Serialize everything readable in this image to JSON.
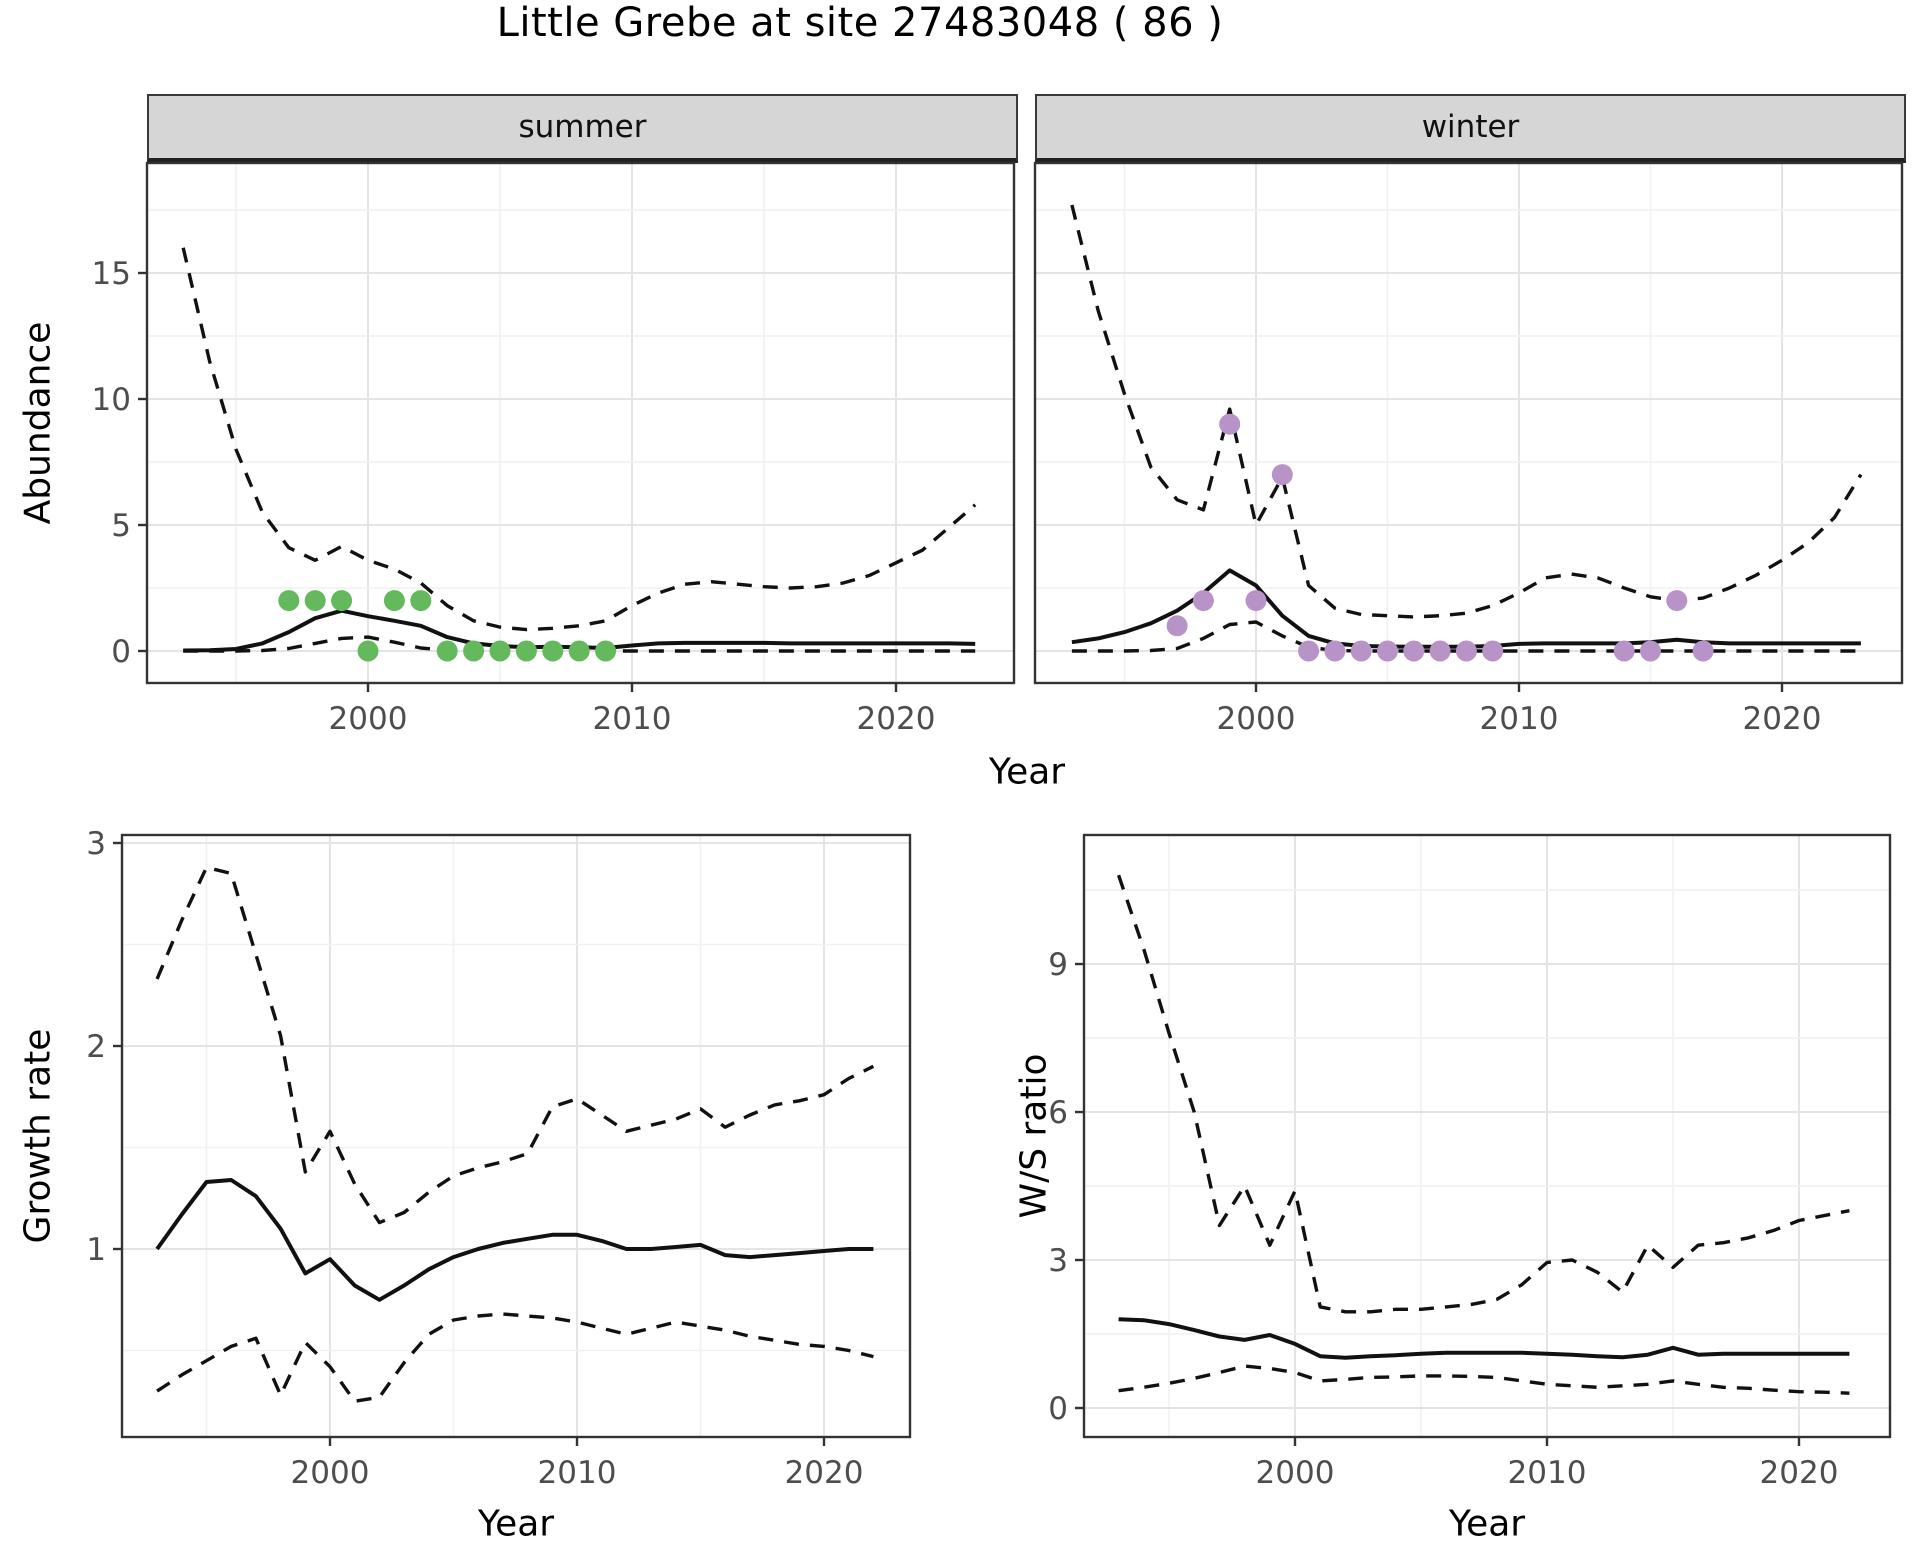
{
  "title": "Little Grebe at site 27483048 ( 86 )",
  "facets": [
    {
      "label": "summer"
    },
    {
      "label": "winter"
    }
  ],
  "axis_labels": {
    "abundance": "Abundance",
    "year": "Year",
    "growth_rate": "Growth rate",
    "ws_ratio": "W/S ratio"
  },
  "colors": {
    "line": "#111111",
    "summer_points": "#64b95c",
    "winter_points": "#b793c8",
    "strip_bg": "#d6d6d6",
    "panel_border": "#333333",
    "grid_major": "#e4e4e4",
    "grid_minor": "#f1f1f1",
    "axis_text": "#4d4d4d"
  },
  "chart_data": [
    {
      "type": "line",
      "facet": "summer",
      "xlabel": "Year",
      "ylabel": "Abundance",
      "xticks": [
        2000,
        2010,
        2020
      ],
      "yticks": [
        0,
        5,
        10,
        15
      ],
      "xlim": [
        1991.6,
        2024.6
      ],
      "ylim": [
        -1.3,
        19.4
      ],
      "grid": true,
      "x": [
        1993,
        1994,
        1995,
        1996,
        1997,
        1998,
        1999,
        2000,
        2001,
        2002,
        2003,
        2004,
        2005,
        2006,
        2007,
        2008,
        2009,
        2010,
        2011,
        2012,
        2013,
        2014,
        2015,
        2016,
        2017,
        2018,
        2019,
        2020,
        2021,
        2022,
        2023
      ],
      "series": [
        {
          "name": "upper_CI",
          "style": "dashed",
          "values": [
            16.0,
            11.5,
            8.0,
            5.5,
            4.1,
            3.6,
            4.15,
            3.6,
            3.25,
            2.7,
            1.8,
            1.2,
            0.95,
            0.85,
            0.9,
            1.0,
            1.2,
            1.8,
            2.3,
            2.65,
            2.75,
            2.65,
            2.55,
            2.5,
            2.55,
            2.7,
            3.0,
            3.5,
            4.0,
            4.9,
            5.8
          ]
        },
        {
          "name": "lower_CI",
          "style": "dashed",
          "values": [
            0,
            0,
            0,
            0.02,
            0.1,
            0.3,
            0.5,
            0.55,
            0.35,
            0.12,
            0.02,
            0,
            0,
            0,
            0,
            0,
            0,
            0,
            0,
            0,
            0,
            0,
            0,
            0,
            0,
            0,
            0,
            0,
            0,
            0,
            0
          ]
        },
        {
          "name": "fitted_abundance",
          "style": "solid",
          "values": [
            0.02,
            0.03,
            0.08,
            0.3,
            0.75,
            1.3,
            1.6,
            1.38,
            1.2,
            1.0,
            0.55,
            0.3,
            0.2,
            0.15,
            0.17,
            0.15,
            0.12,
            0.22,
            0.3,
            0.32,
            0.32,
            0.32,
            0.32,
            0.3,
            0.3,
            0.3,
            0.3,
            0.3,
            0.3,
            0.3,
            0.28
          ]
        }
      ],
      "points": {
        "name": "observed_counts",
        "color_key": "summer_points",
        "x": [
          1997,
          1998,
          1999,
          2000,
          2001,
          2002,
          2003,
          2004,
          2005,
          2006,
          2007,
          2008,
          2009
        ],
        "y": [
          2,
          2,
          2,
          0,
          2,
          2,
          0,
          0,
          0,
          0,
          0,
          0,
          0
        ]
      }
    },
    {
      "type": "line",
      "facet": "winter",
      "xlabel": "Year",
      "ylabel": "Abundance",
      "xticks": [
        2000,
        2010,
        2020
      ],
      "yticks": [
        0,
        5,
        10,
        15
      ],
      "xlim": [
        1991.6,
        2024.7
      ],
      "ylim": [
        -1.3,
        19.4
      ],
      "grid": true,
      "x": [
        1993,
        1994,
        1995,
        1996,
        1997,
        1998,
        1999,
        2000,
        2001,
        2002,
        2003,
        2004,
        2005,
        2006,
        2007,
        2008,
        2009,
        2010,
        2011,
        2012,
        2013,
        2014,
        2015,
        2016,
        2017,
        2018,
        2019,
        2020,
        2021,
        2022,
        2023
      ],
      "series": [
        {
          "name": "upper_CI",
          "style": "dashed",
          "values": [
            17.7,
            13.5,
            10.2,
            7.3,
            6.0,
            5.6,
            9.6,
            5.0,
            6.9,
            2.6,
            1.7,
            1.45,
            1.4,
            1.35,
            1.4,
            1.5,
            1.8,
            2.3,
            2.9,
            3.05,
            2.9,
            2.5,
            2.15,
            2.0,
            2.1,
            2.5,
            3.0,
            3.6,
            4.3,
            5.3,
            7.0
          ]
        },
        {
          "name": "lower_CI",
          "style": "dashed",
          "values": [
            0,
            0,
            0,
            0.02,
            0.1,
            0.5,
            1.05,
            1.15,
            0.6,
            0.15,
            0.02,
            0,
            0,
            0,
            0,
            0,
            0,
            0,
            0,
            0,
            0,
            0,
            0,
            0,
            0,
            0,
            0,
            0,
            0,
            0,
            0
          ]
        },
        {
          "name": "fitted_abundance",
          "style": "solid",
          "values": [
            0.35,
            0.5,
            0.75,
            1.1,
            1.6,
            2.3,
            3.2,
            2.6,
            1.4,
            0.6,
            0.3,
            0.2,
            0.18,
            0.17,
            0.17,
            0.17,
            0.2,
            0.28,
            0.3,
            0.3,
            0.3,
            0.3,
            0.35,
            0.45,
            0.35,
            0.3,
            0.3,
            0.3,
            0.3,
            0.3,
            0.3
          ]
        }
      ],
      "points": {
        "name": "observed_counts",
        "color_key": "winter_points",
        "x": [
          1997,
          1998,
          1999,
          2000,
          2001,
          2002,
          2003,
          2004,
          2005,
          2006,
          2007,
          2008,
          2009,
          2014,
          2015,
          2016,
          2017
        ],
        "y": [
          1,
          2,
          9,
          2,
          7,
          0,
          0,
          0,
          0,
          0,
          0,
          0,
          0,
          0,
          0,
          2,
          0
        ]
      }
    },
    {
      "type": "line",
      "facet": "growth_rate",
      "xlabel": "Year",
      "ylabel": "Growth rate",
      "xticks": [
        2000,
        2010,
        2020
      ],
      "yticks": [
        1,
        2,
        3
      ],
      "xlim": [
        1991.55,
        2023.45
      ],
      "ylim": [
        0.07,
        3.03
      ],
      "grid": true,
      "x": [
        1993,
        1994,
        1995,
        1996,
        1997,
        1998,
        1999,
        2000,
        2001,
        2002,
        2003,
        2004,
        2005,
        2006,
        2007,
        2008,
        2009,
        2010,
        2011,
        2012,
        2013,
        2014,
        2015,
        2016,
        2017,
        2018,
        2019,
        2020,
        2021,
        2022
      ],
      "series": [
        {
          "name": "upper_CI",
          "style": "dashed",
          "values": [
            2.33,
            2.62,
            2.88,
            2.85,
            2.45,
            2.05,
            1.38,
            1.58,
            1.32,
            1.13,
            1.18,
            1.28,
            1.36,
            1.4,
            1.43,
            1.47,
            1.7,
            1.74,
            1.66,
            1.58,
            1.61,
            1.64,
            1.69,
            1.6,
            1.66,
            1.71,
            1.73,
            1.76,
            1.84,
            1.9
          ]
        },
        {
          "name": "lower_CI",
          "style": "dashed",
          "values": [
            0.3,
            0.38,
            0.45,
            0.52,
            0.56,
            0.28,
            0.54,
            0.42,
            0.25,
            0.27,
            0.44,
            0.58,
            0.65,
            0.67,
            0.68,
            0.67,
            0.66,
            0.64,
            0.61,
            0.58,
            0.61,
            0.64,
            0.62,
            0.6,
            0.57,
            0.55,
            0.53,
            0.52,
            0.5,
            0.47
          ]
        },
        {
          "name": "growth_rate",
          "style": "solid",
          "values": [
            1.0,
            1.17,
            1.33,
            1.34,
            1.26,
            1.1,
            0.88,
            0.95,
            0.82,
            0.75,
            0.82,
            0.9,
            0.96,
            1.0,
            1.03,
            1.05,
            1.07,
            1.07,
            1.04,
            1.0,
            1.0,
            1.01,
            1.02,
            0.97,
            0.96,
            0.97,
            0.98,
            0.99,
            1.0,
            1.0
          ]
        }
      ],
      "points": null
    },
    {
      "type": "line",
      "facet": "ws_ratio",
      "xlabel": "Year",
      "ylabel": "W/S ratio",
      "xticks": [
        2000,
        2010,
        2020
      ],
      "yticks": [
        0,
        3,
        6,
        9
      ],
      "xlim": [
        1991.6,
        2023.6
      ],
      "ylim": [
        -0.6,
        11.6
      ],
      "grid": true,
      "x": [
        1993,
        1994,
        1995,
        1996,
        1997,
        1998,
        1999,
        2000,
        2001,
        2002,
        2003,
        2004,
        2005,
        2006,
        2007,
        2008,
        2009,
        2010,
        2011,
        2012,
        2013,
        2014,
        2015,
        2016,
        2017,
        2018,
        2019,
        2020,
        2021,
        2022
      ],
      "series": [
        {
          "name": "upper_CI",
          "style": "dashed",
          "values": [
            10.8,
            9.3,
            7.6,
            6.0,
            3.7,
            4.5,
            3.3,
            4.4,
            2.05,
            1.95,
            1.95,
            2.0,
            2.0,
            2.05,
            2.1,
            2.2,
            2.5,
            2.95,
            3.0,
            2.75,
            2.35,
            3.3,
            2.85,
            3.3,
            3.35,
            3.45,
            3.6,
            3.8,
            3.9,
            4.0
          ]
        },
        {
          "name": "lower_CI",
          "style": "dashed",
          "values": [
            0.35,
            0.42,
            0.5,
            0.6,
            0.72,
            0.85,
            0.8,
            0.72,
            0.55,
            0.58,
            0.62,
            0.63,
            0.65,
            0.65,
            0.64,
            0.62,
            0.55,
            0.48,
            0.45,
            0.42,
            0.45,
            0.48,
            0.55,
            0.48,
            0.42,
            0.4,
            0.36,
            0.33,
            0.32,
            0.3
          ]
        },
        {
          "name": "ws_ratio",
          "style": "solid",
          "values": [
            1.8,
            1.78,
            1.7,
            1.58,
            1.45,
            1.38,
            1.48,
            1.3,
            1.05,
            1.02,
            1.05,
            1.07,
            1.1,
            1.12,
            1.12,
            1.12,
            1.12,
            1.1,
            1.08,
            1.05,
            1.03,
            1.08,
            1.22,
            1.08,
            1.1,
            1.1,
            1.1,
            1.1,
            1.1,
            1.1
          ]
        }
      ],
      "points": null
    }
  ]
}
